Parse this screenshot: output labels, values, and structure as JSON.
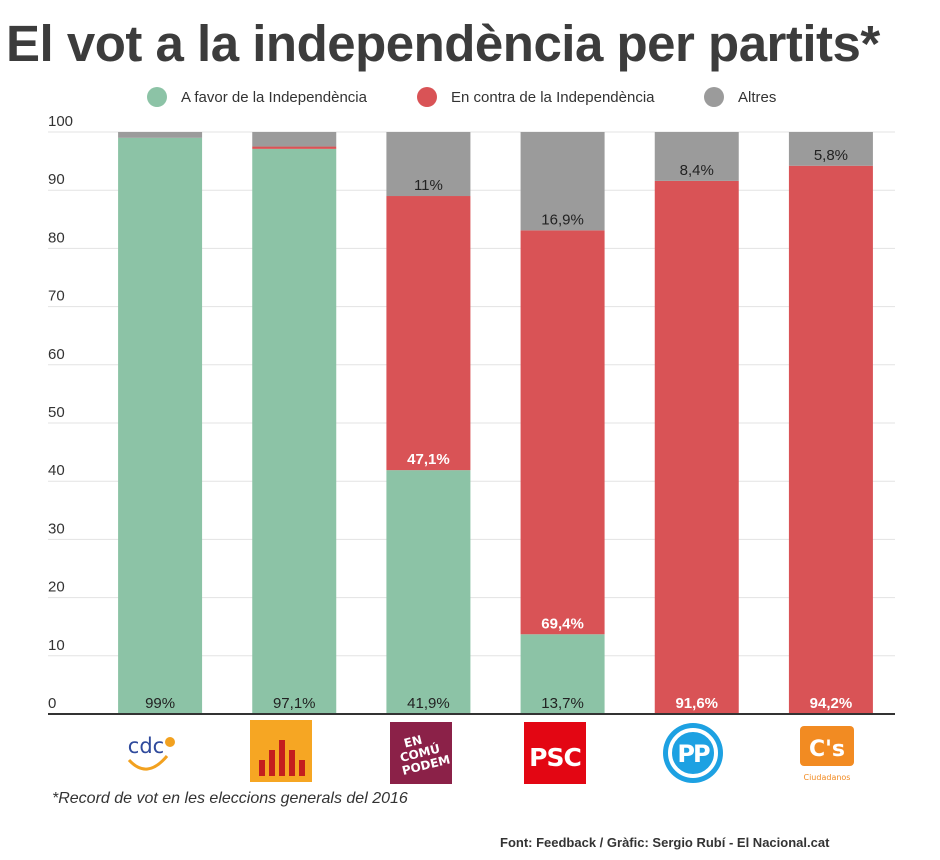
{
  "title": "El vot a la independència per partits*",
  "legend": [
    {
      "label": "A favor de la Independència",
      "color": "#8cc3a6"
    },
    {
      "label": "En contra de la Independència",
      "color": "#d95356"
    },
    {
      "label": "Altres",
      "color": "#9b9b9b"
    }
  ],
  "chart_data": {
    "type": "bar",
    "stacked": true,
    "categories": [
      "CDC",
      "ERC",
      "En Comú Podem",
      "PSC",
      "PP",
      "C's"
    ],
    "series": [
      {
        "name": "A favor de la Independència",
        "color": "#8cc3a6",
        "values": [
          99,
          97.1,
          41.9,
          13.7,
          0,
          0
        ]
      },
      {
        "name": "En contra de la Independència",
        "color": "#d95356",
        "values": [
          0,
          0.4,
          47.1,
          69.4,
          91.6,
          94.2
        ]
      },
      {
        "name": "Altres",
        "color": "#9b9b9b",
        "values": [
          1,
          2.5,
          11,
          16.9,
          8.4,
          5.8
        ]
      }
    ],
    "data_labels": [
      [
        "99%",
        "",
        ""
      ],
      [
        "97,1%",
        "",
        ""
      ],
      [
        "41,9%",
        "47,1%",
        "11%"
      ],
      [
        "13,7%",
        "69,4%",
        "16,9%"
      ],
      [
        "",
        "91,6%",
        "8,4%"
      ],
      [
        "",
        "94,2%",
        "5,8%"
      ]
    ],
    "yticks": [
      0,
      10,
      20,
      30,
      40,
      50,
      60,
      70,
      80,
      90,
      100
    ],
    "ylim": [
      0,
      100
    ],
    "grid": true,
    "legend_position": "top"
  },
  "logos": {
    "cdc": "cdc",
    "psc": "PSC",
    "pp": "PP",
    "cs": "C's",
    "cs_sub": "Ciudadanos",
    "ecp": [
      "EN",
      "COMÚ",
      "PODEM"
    ]
  },
  "footnote": "*Record de vot en les eleccions generals del 2016",
  "source": "Font: Feedback / Gràfic: Sergio Rubí - El Nacional.cat"
}
